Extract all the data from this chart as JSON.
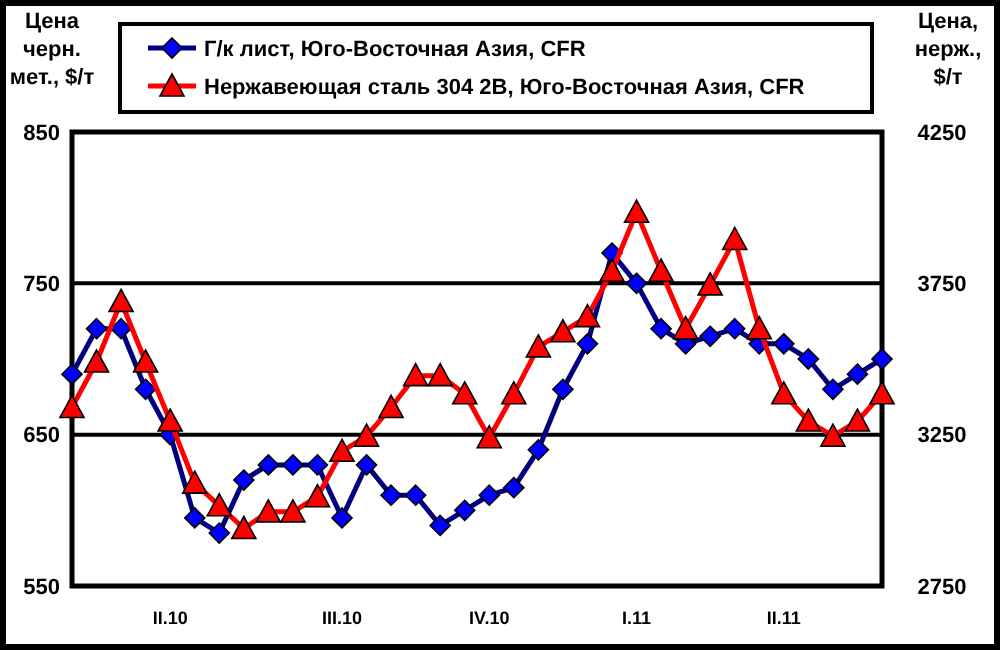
{
  "chart_data": {
    "type": "line",
    "ylabel": "Цена\nчерн.\nмет., $/т",
    "y2label": "Цена,\nнерж.,\n$/т",
    "categories": [
      null,
      null,
      null,
      null,
      "II.10",
      null,
      null,
      null,
      null,
      null,
      null,
      "III.10",
      null,
      null,
      null,
      null,
      null,
      "IV.10",
      null,
      null,
      null,
      null,
      null,
      "I.11",
      null,
      null,
      null,
      null,
      null,
      "II.11",
      null,
      null,
      null,
      null
    ],
    "ylim": [
      550,
      850
    ],
    "yticks": [
      550,
      650,
      750,
      850
    ],
    "y2lim": [
      2750,
      4250
    ],
    "y2ticks": [
      2750,
      3250,
      3750,
      4250
    ],
    "grid": "y",
    "legend": "top",
    "series": [
      {
        "name": "Г/к лист, Юго-Восточная Азия, CFR",
        "color": "#000080",
        "marker": "diamond",
        "values": [
          690,
          720,
          720,
          680,
          650,
          595,
          585,
          620,
          630,
          630,
          630,
          595,
          630,
          610,
          610,
          590,
          600,
          610,
          615,
          640,
          680,
          710,
          770,
          750,
          720,
          710,
          715,
          720,
          710,
          710,
          700,
          680,
          690,
          700
        ]
      },
      {
        "name": "Нержавеющая сталь 304 2B, Юго-Восточная Азия, CFR",
        "color": "#ff0000",
        "marker": "triangle",
        "axis": "y2",
        "values": [
          3340,
          3490,
          3690,
          3490,
          3295,
          3090,
          3015,
          2940,
          2995,
          2995,
          3045,
          3195,
          3245,
          3340,
          3445,
          3445,
          3385,
          3240,
          3385,
          3540,
          3590,
          3640,
          3790,
          3985,
          3790,
          3600,
          3745,
          3895,
          3600,
          3385,
          3295,
          3245,
          3295,
          3385
        ]
      }
    ]
  }
}
